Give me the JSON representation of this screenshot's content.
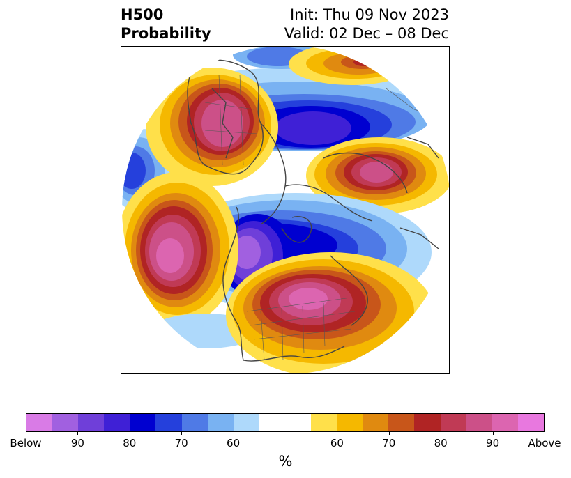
{
  "title": {
    "left_line1": "H500",
    "left_line2": "Probability",
    "right_line1": "Init: Thu 09 Nov 2023",
    "right_line2": "Valid: 02 Dec – 08 Dec"
  },
  "colorbar": {
    "label": "%",
    "colors": [
      "#d97be6",
      "#a160e0",
      "#6f3fd9",
      "#3f20d6",
      "#0000d0",
      "#2540dc",
      "#4f7ae6",
      "#79b2f2",
      "#aed9fb",
      "#ffffff",
      "#ffffff",
      "#ffe04a",
      "#f5b800",
      "#e08a10",
      "#c8561a",
      "#b02424",
      "#c03a55",
      "#cc5088",
      "#dc65b0",
      "#e878df"
    ],
    "ticks": [
      {
        "label": "Below",
        "index": 0
      },
      {
        "label": "90",
        "index": 2
      },
      {
        "label": "80",
        "index": 4
      },
      {
        "label": "70",
        "index": 6
      },
      {
        "label": "60",
        "index": 8
      },
      {
        "label": "60",
        "index": 12
      },
      {
        "label": "70",
        "index": 14
      },
      {
        "label": "80",
        "index": 16
      },
      {
        "label": "90",
        "index": 18
      },
      {
        "label": "Above",
        "index": 20
      }
    ]
  }
}
